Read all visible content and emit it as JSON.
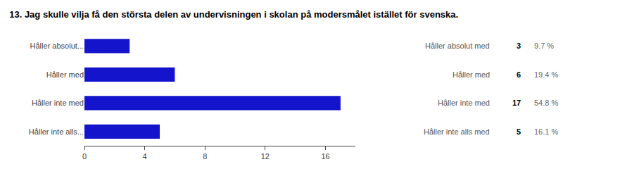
{
  "chart_data": {
    "type": "bar",
    "orientation": "horizontal",
    "title": "13. Jag skulle vilja få den största delen av undervisningen i skolan på modersmålet istället för svenska.",
    "categories": [
      "Håller absolut...",
      "Håller med",
      "Håller inte med",
      "Håller inte alls..."
    ],
    "values": [
      3,
      6,
      17,
      5
    ],
    "color": "#1414cc",
    "xlim": [
      0,
      18
    ],
    "xticks": [
      0,
      4,
      8,
      12,
      16
    ],
    "grid": false,
    "annotations": [
      {
        "label": "Håller absolut med",
        "count": 3,
        "percent": 9.7,
        "percent_label": "9.7 %"
      },
      {
        "label": "Håller med",
        "count": 6,
        "percent": 19.4,
        "percent_label": "19.4 %"
      },
      {
        "label": "Håller inte med",
        "count": 17,
        "percent": 54.8,
        "percent_label": "54.8 %"
      },
      {
        "label": "Håller inte alls med",
        "count": 5,
        "percent": 16.1,
        "percent_label": "16.1 %"
      }
    ]
  }
}
